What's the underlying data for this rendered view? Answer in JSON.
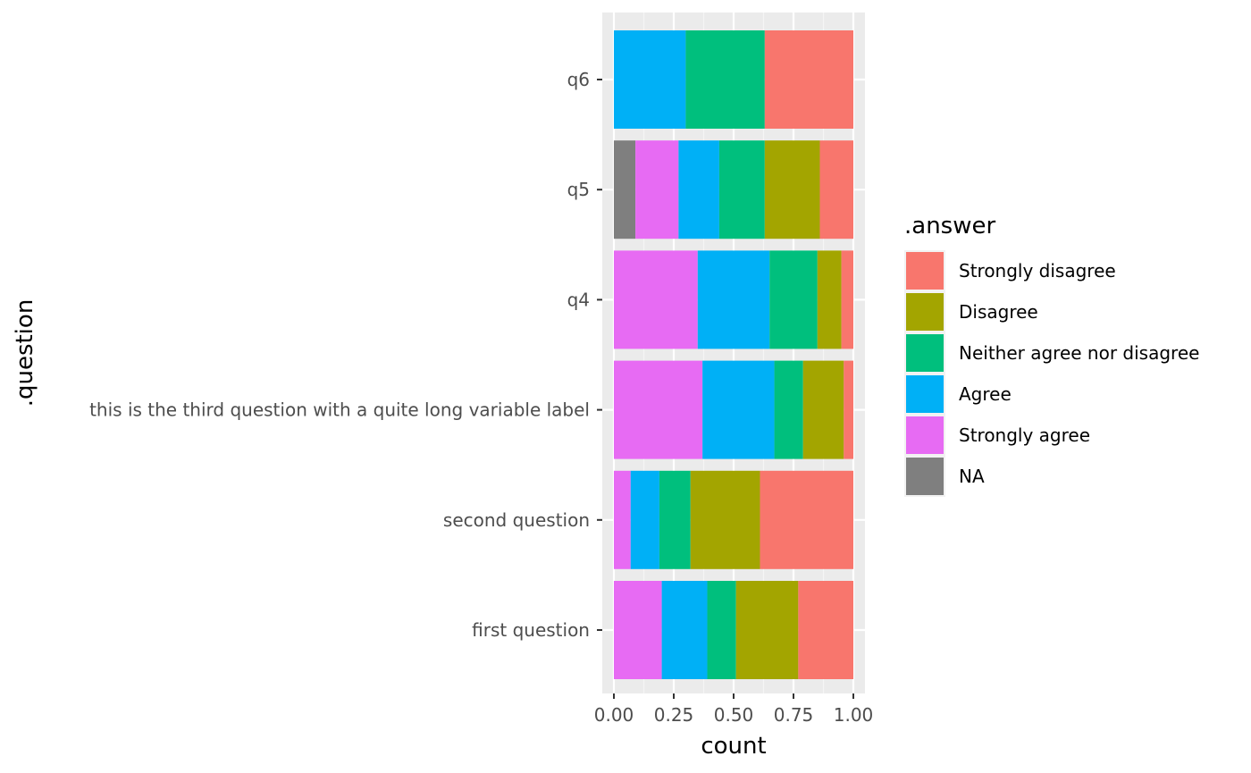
{
  "chart_data": {
    "type": "bar",
    "orientation": "horizontal",
    "stacked": true,
    "xlabel": "count",
    "ylabel": ".question",
    "xlim": [
      0,
      1
    ],
    "x_ticks": [
      "0.00",
      "0.25",
      "0.50",
      "0.75",
      "1.00"
    ],
    "x_tick_values": [
      0,
      0.25,
      0.5,
      0.75,
      1
    ],
    "grid": true,
    "categories": [
      "first question",
      "second question",
      "this is the third question with a quite long variable label",
      "q4",
      "q5",
      "q6"
    ],
    "series": [
      {
        "name": "NA",
        "color": "#7F7F7F",
        "values": [
          0,
          0,
          0,
          0,
          0.09,
          0
        ]
      },
      {
        "name": "Strongly agree",
        "color": "#E76BF3",
        "values": [
          0.2,
          0.07,
          0.37,
          0.35,
          0.18,
          0
        ]
      },
      {
        "name": "Agree",
        "color": "#00B0F6",
        "values": [
          0.19,
          0.12,
          0.3,
          0.3,
          0.17,
          0.3
        ]
      },
      {
        "name": "Neither agree nor disagree",
        "color": "#00BF7D",
        "values": [
          0.12,
          0.13,
          0.12,
          0.2,
          0.19,
          0.33
        ]
      },
      {
        "name": "Disagree",
        "color": "#A3A500",
        "values": [
          0.26,
          0.29,
          0.17,
          0.1,
          0.23,
          0
        ]
      },
      {
        "name": "Strongly disagree",
        "color": "#F8766D",
        "values": [
          0.23,
          0.39,
          0.04,
          0.05,
          0.14,
          0.37
        ]
      }
    ],
    "legend": {
      "title": ".answer",
      "position": "right",
      "order": [
        "Strongly disagree",
        "Disagree",
        "Neither agree nor disagree",
        "Agree",
        "Strongly agree",
        "NA"
      ]
    },
    "colors": {
      "panel_background": "#EBEBEB",
      "grid_major": "#FFFFFF",
      "grid_minor": "#F5F5F5"
    }
  }
}
